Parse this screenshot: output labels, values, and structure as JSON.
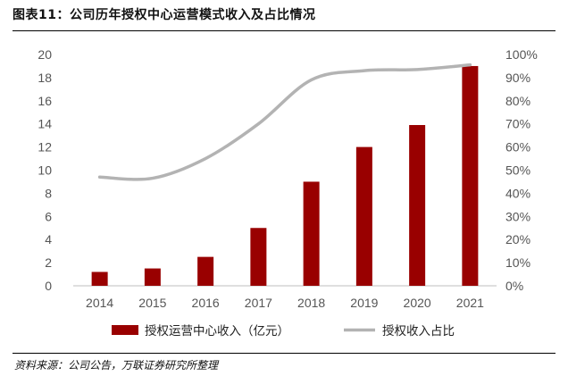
{
  "figure": {
    "title": "图表11：公司历年授权中心运营模式收入及占比情况",
    "source": "资料来源：公司公告，万联证券研究所整理"
  },
  "chart_data": {
    "type": "bar",
    "categories": [
      "2014",
      "2015",
      "2016",
      "2017",
      "2018",
      "2019",
      "2020",
      "2021"
    ],
    "series": [
      {
        "name": "授权运营中心收入（亿元）",
        "kind": "bar",
        "axis": "left",
        "color": "#990000",
        "values": [
          1.2,
          1.5,
          2.5,
          5.0,
          9.0,
          12.0,
          13.9,
          19.0
        ]
      },
      {
        "name": "授权收入占比",
        "kind": "line",
        "axis": "right",
        "color": "#b3b3b3",
        "values": [
          47,
          46.5,
          55,
          70,
          89,
          93,
          93.5,
          95.5
        ]
      }
    ],
    "left_axis": {
      "min": 0,
      "max": 20,
      "step": 2,
      "ticks": [
        "0",
        "2",
        "4",
        "6",
        "8",
        "10",
        "12",
        "14",
        "16",
        "18",
        "20"
      ]
    },
    "right_axis": {
      "min": 0,
      "max": 100,
      "step": 10,
      "ticks": [
        "0%",
        "10%",
        "20%",
        "30%",
        "40%",
        "50%",
        "60%",
        "70%",
        "80%",
        "90%",
        "100%"
      ]
    },
    "legend_position": "bottom",
    "grid": false
  }
}
